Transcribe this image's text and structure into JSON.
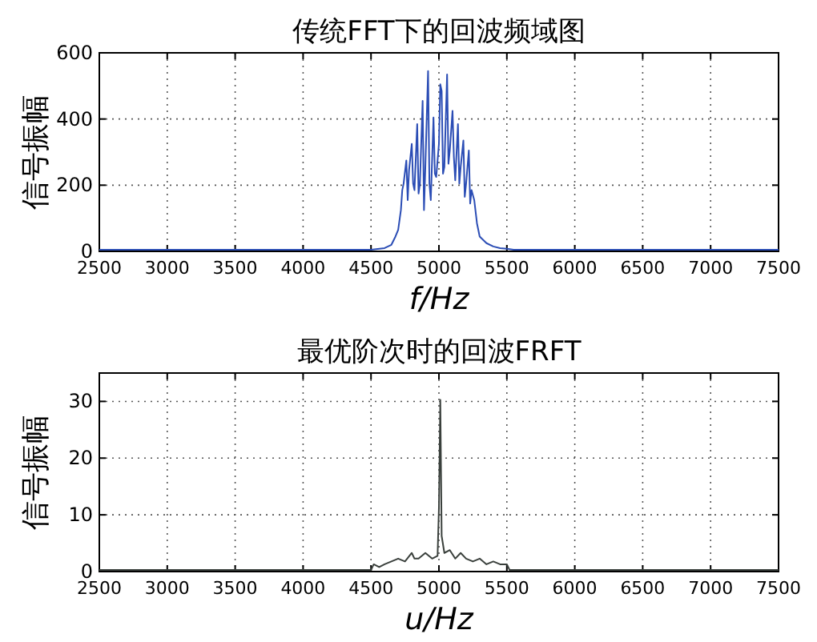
{
  "chart_data": [
    {
      "type": "line",
      "title": "传统FFT下的回波频域图",
      "xlabel": "f/Hz",
      "ylabel": "信号振幅",
      "xlim": [
        2500,
        7500
      ],
      "xticks": [
        2500,
        3000,
        3500,
        4000,
        4500,
        5000,
        5500,
        6000,
        6500,
        7000,
        7500
      ],
      "ylim": [
        0,
        600
      ],
      "yticks": [
        0,
        200,
        400,
        600
      ],
      "grid": true,
      "line_style": "solid",
      "series": [
        {
          "color": "#2b4db5",
          "x": [
            2500,
            4500,
            4600,
            4650,
            4680,
            4700,
            4720,
            4730,
            4740,
            4760,
            4770,
            4780,
            4800,
            4810,
            4820,
            4840,
            4850,
            4860,
            4880,
            4890,
            4900,
            4920,
            4930,
            4940,
            4960,
            4970,
            4980,
            5000,
            5010,
            5020,
            5030,
            5040,
            5060,
            5070,
            5080,
            5100,
            5110,
            5120,
            5140,
            5150,
            5160,
            5180,
            5190,
            5200,
            5220,
            5230,
            5240,
            5260,
            5280,
            5300,
            5350,
            5400,
            5450,
            5500,
            5550,
            7500
          ],
          "values": [
            0,
            0,
            5,
            15,
            40,
            60,
            120,
            180,
            200,
            270,
            150,
            240,
            320,
            200,
            180,
            380,
            170,
            200,
            450,
            120,
            250,
            540,
            200,
            150,
            400,
            230,
            220,
            320,
            500,
            480,
            230,
            250,
            530,
            260,
            300,
            420,
            280,
            210,
            380,
            200,
            250,
            330,
            160,
            200,
            300,
            140,
            180,
            150,
            80,
            40,
            20,
            10,
            5,
            3,
            0,
            0
          ]
        }
      ]
    },
    {
      "type": "line",
      "title": "最优阶次时的回波FRFT",
      "xlabel": "u/Hz",
      "ylabel": "信号振幅",
      "xlim": [
        2500,
        7500
      ],
      "xticks": [
        2500,
        3000,
        3500,
        4000,
        4500,
        5000,
        5500,
        6000,
        6500,
        7000,
        7500
      ],
      "ylim": [
        0,
        35
      ],
      "yticks": [
        0,
        10,
        20,
        30
      ],
      "grid": true,
      "line_style": "solid",
      "series": [
        {
          "color": "#3a403c",
          "x": [
            2500,
            4500,
            4520,
            4560,
            4600,
            4650,
            4700,
            4750,
            4800,
            4820,
            4850,
            4900,
            4950,
            4990,
            5000,
            5010,
            5020,
            5040,
            5080,
            5120,
            5160,
            5200,
            5250,
            5300,
            5350,
            5400,
            5450,
            5500,
            5520,
            7500
          ],
          "values": [
            0,
            0,
            1,
            0.5,
            1,
            1.5,
            2,
            1.5,
            3,
            2,
            2,
            3,
            2,
            2.5,
            11,
            30,
            6,
            3,
            3.5,
            2,
            3,
            2,
            1.5,
            2,
            1,
            1.5,
            1,
            1,
            0,
            0
          ]
        }
      ]
    }
  ]
}
